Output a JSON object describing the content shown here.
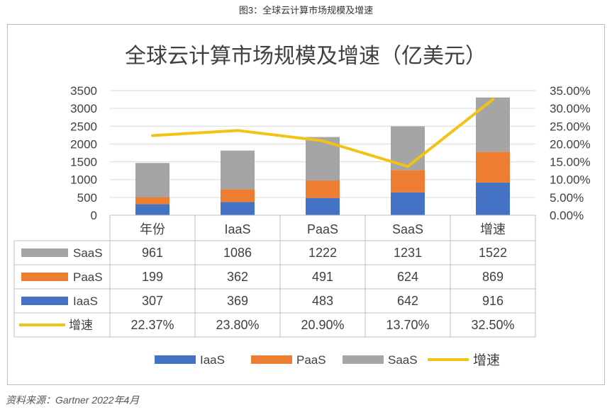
{
  "figure_caption": "图3：全球云计算市场规模及增速",
  "source_note": "资料来源：Gartner 2022年4月",
  "colors": {
    "iaas": "#4472c4",
    "paas": "#ed7d31",
    "saas": "#a5a5a5",
    "growth": "#f2c314"
  },
  "chart_data": {
    "type": "bar",
    "stacked": true,
    "title": "全球云计算市场规模及增速（亿美元）",
    "categories": [
      "年份",
      "IaaS",
      "PaaS",
      "SaaS",
      "增速"
    ],
    "series": [
      {
        "name": "IaaS",
        "kind": "bar",
        "values": [
          307,
          369,
          483,
          642,
          916
        ]
      },
      {
        "name": "PaaS",
        "kind": "bar",
        "values": [
          199,
          362,
          491,
          624,
          869
        ]
      },
      {
        "name": "SaaS",
        "kind": "bar",
        "values": [
          961,
          1086,
          1222,
          1231,
          1522
        ]
      },
      {
        "name": "增速",
        "kind": "line",
        "axis": "right",
        "values": [
          22.37,
          23.8,
          20.9,
          13.7,
          32.5
        ]
      }
    ],
    "ylim": [
      0,
      3500
    ],
    "y_ticks": [
      "0",
      "500",
      "1000",
      "1500",
      "2000",
      "2500",
      "3000",
      "3500"
    ],
    "y2lim": [
      0,
      35
    ],
    "y2_ticks": [
      "0.00%",
      "5.00%",
      "10.00%",
      "15.00%",
      "20.00%",
      "25.00%",
      "30.00%",
      "35.00%"
    ],
    "data_table": {
      "rows": [
        {
          "name": "SaaS",
          "cells": [
            "961",
            "1086",
            "1222",
            "1231",
            "1522"
          ]
        },
        {
          "name": "PaaS",
          "cells": [
            "199",
            "362",
            "491",
            "624",
            "869"
          ]
        },
        {
          "name": "IaaS",
          "cells": [
            "307",
            "369",
            "483",
            "642",
            "916"
          ]
        },
        {
          "name": "增速",
          "cells": [
            "22.37%",
            "23.80%",
            "20.90%",
            "13.70%",
            "32.50%"
          ]
        }
      ]
    },
    "legend": [
      "IaaS",
      "PaaS",
      "SaaS",
      "增速"
    ],
    "legend_position": "bottom",
    "grid": true
  }
}
